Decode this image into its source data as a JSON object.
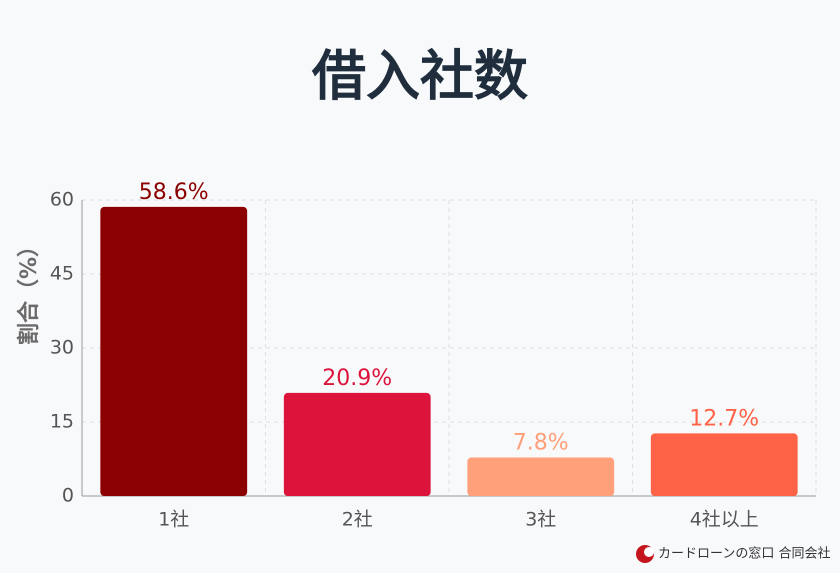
{
  "chart_data": {
    "type": "bar",
    "title": "借入社数",
    "y_label": "割合（%）",
    "categories": [
      "1社",
      "2社",
      "3社",
      "4社以上"
    ],
    "values": [
      58.6,
      20.9,
      7.8,
      12.7
    ],
    "value_labels": [
      "58.6%",
      "20.9%",
      "7.8%",
      "12.7%"
    ],
    "colors": [
      "#8b0000",
      "#dc143c",
      "#ffa07a",
      "#ff6347"
    ],
    "ylim": [
      0,
      60
    ],
    "yticks": [
      0,
      15,
      30,
      45,
      60
    ],
    "grid": true,
    "watermark": "カードローンの窓口 合同会社"
  }
}
